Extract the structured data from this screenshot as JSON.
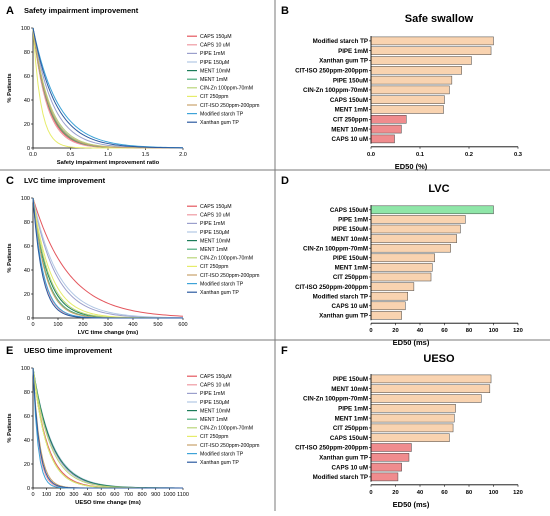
{
  "colors": {
    "bar_default": "#f9d3b0",
    "bar_low": "#f08c8e",
    "bar_high": "#8fe6a8",
    "bar_stroke": "#444444",
    "divider": "#7a7a7a"
  },
  "line_colors": [
    "#e4575e",
    "#ee9aa2",
    "#9b9fcc",
    "#b2c7e4",
    "#1c7c59",
    "#49aa7c",
    "#b9d57a",
    "#e6ec6a",
    "#c9a26c",
    "#3da3d8",
    "#2b5aa0"
  ],
  "chart_data": [
    {
      "panel": "A",
      "type": "line",
      "title": "Safety impairment improvement",
      "xlabel": "Safety impairment improvement ratio",
      "ylabel": "% Patients",
      "xlim": [
        0.0,
        2.0
      ],
      "ylim": [
        0,
        100
      ],
      "xticks": [
        "0.0",
        "0.5",
        "1.0",
        "1.5",
        "2.0"
      ],
      "yticks": [
        "0",
        "20",
        "40",
        "60",
        "80",
        "100"
      ],
      "legend_position": "right",
      "series": [
        {
          "name": "CAPS 150μM",
          "k": 5.2
        },
        {
          "name": "CAPS 10 uM",
          "k": 5.5
        },
        {
          "name": "PIPE 1mM",
          "k": 3.8
        },
        {
          "name": "PIPE 150μM",
          "k": 4.6
        },
        {
          "name": "MENT 10mM",
          "k": 4.9
        },
        {
          "name": "MENT 1mM",
          "k": 5.0
        },
        {
          "name": "CIN-Zn 100ppm-70mM",
          "k": 4.5
        },
        {
          "name": "CIT 250ppm",
          "k": 9.5
        },
        {
          "name": "CIT-ISO 250ppm-200ppm",
          "k": 4.8
        },
        {
          "name": "Modified starch TP",
          "k": 3.0
        },
        {
          "name": "Xanthan gum TP",
          "k": 3.3
        }
      ]
    },
    {
      "panel": "C",
      "type": "line",
      "title": "LVC time improvement",
      "xlabel": "LVC time change (ms)",
      "ylabel": "% Patients",
      "xlim": [
        0,
        600
      ],
      "ylim": [
        0,
        100
      ],
      "xticks": [
        "0",
        "100",
        "200",
        "300",
        "400",
        "500",
        "600"
      ],
      "yticks": [
        "0",
        "20",
        "40",
        "60",
        "80",
        "100"
      ],
      "legend_position": "right",
      "series": [
        {
          "name": "CAPS 150μM",
          "k": 0.007
        },
        {
          "name": "CAPS 10 uM",
          "k": 0.025
        },
        {
          "name": "PIPE 1mM",
          "k": 0.011
        },
        {
          "name": "PIPE 150μM",
          "k": 0.01
        },
        {
          "name": "MENT 10mM",
          "k": 0.017
        },
        {
          "name": "MENT 1mM",
          "k": 0.019
        },
        {
          "name": "CIN-Zn 100ppm-70mM",
          "k": 0.016
        },
        {
          "name": "CIT 250ppm",
          "k": 0.014
        },
        {
          "name": "CIT-ISO 250ppm-200ppm",
          "k": 0.02
        },
        {
          "name": "Modified starch TP",
          "k": 0.024
        },
        {
          "name": "Xanthan gum TP",
          "k": 0.027
        }
      ]
    },
    {
      "panel": "E",
      "type": "line",
      "title": "UESO time improvement",
      "xlabel": "UESO time change (ms)",
      "ylabel": "% Patients",
      "xlim": [
        0,
        1100
      ],
      "ylim": [
        0,
        100
      ],
      "xticks": [
        "0",
        "100",
        "200",
        "300",
        "400",
        "500",
        "600",
        "700",
        "800",
        "900",
        "1000",
        "1100"
      ],
      "yticks": [
        "0",
        "20",
        "40",
        "60",
        "80",
        "100"
      ],
      "legend_position": "right",
      "series": [
        {
          "name": "CAPS 150μM",
          "k": 0.0095
        },
        {
          "name": "CAPS 10 uM",
          "k": 0.024
        },
        {
          "name": "PIPE 1mM",
          "k": 0.0075
        },
        {
          "name": "PIPE 150μM",
          "k": 0.007
        },
        {
          "name": "MENT 10mM",
          "k": 0.0072
        },
        {
          "name": "MENT 1mM",
          "k": 0.01
        },
        {
          "name": "CIN-Zn 100ppm-70mM",
          "k": 0.008
        },
        {
          "name": "CIT 250ppm",
          "k": 0.01
        },
        {
          "name": "CIT-ISO 250ppm-200ppm",
          "k": 0.02
        },
        {
          "name": "Modified starch TP",
          "k": 0.028
        },
        {
          "name": "Xanthan gum TP",
          "k": 0.022
        }
      ]
    },
    {
      "panel": "B",
      "type": "bar",
      "orientation": "horizontal",
      "title": "Safe swallow",
      "xlabel": "ED50 (%)",
      "xlim": [
        0.0,
        0.3
      ],
      "xticks": [
        "0.0",
        "0.1",
        "0.2",
        "0.3"
      ],
      "categories": [
        "Modified starch TP",
        "PIPE 1mM",
        "Xanthan gum TP",
        "CIT-ISO 250ppm-200ppm",
        "PIPE 150uM",
        "CIN-Zn 100ppm-70mM",
        "CAPS 150uM",
        "MENT 1mM",
        "CIT 250ppm",
        "MENT 10mM",
        "CAPS 10 uM"
      ],
      "values": [
        0.25,
        0.245,
        0.205,
        0.185,
        0.165,
        0.16,
        0.15,
        0.148,
        0.072,
        0.062,
        0.048
      ],
      "bar_groups": [
        "default",
        "default",
        "default",
        "default",
        "default",
        "default",
        "default",
        "default",
        "low",
        "low",
        "low"
      ]
    },
    {
      "panel": "D",
      "type": "bar",
      "orientation": "horizontal",
      "title": "LVC",
      "xlabel": "ED50 (ms)",
      "xlim": [
        0,
        120
      ],
      "xticks": [
        "0",
        "20",
        "40",
        "60",
        "80",
        "100",
        "120"
      ],
      "categories": [
        "CAPS 150uM",
        "PIPE 1mM",
        "PIPE 150uM",
        "MENT 10mM",
        "CIN-Zn 100ppm-70mM",
        "PIPE 150uM",
        "MENT 1mM",
        "CIT 250ppm",
        "CIT-ISO 250ppm-200ppm",
        "Modified starch TP",
        "CAPS 10 uM",
        "Xanthan gum TP"
      ],
      "values": [
        100,
        77,
        73,
        70,
        65,
        52,
        50,
        49,
        35,
        30,
        28,
        25
      ],
      "bar_groups": [
        "high",
        "default",
        "default",
        "default",
        "default",
        "default",
        "default",
        "default",
        "default",
        "default",
        "default",
        "default"
      ]
    },
    {
      "panel": "F",
      "type": "bar",
      "orientation": "horizontal",
      "title": "UESO",
      "xlabel": "ED50 (ms)",
      "xlim": [
        0,
        120
      ],
      "xticks": [
        "0",
        "20",
        "40",
        "60",
        "80",
        "100",
        "120"
      ],
      "categories": [
        "PIPE 150uM",
        "MENT 10mM",
        "CIN-Zn 100ppm-70mM",
        "PIPE 1mM",
        "MENT 1mM",
        "CIT 250ppm",
        "CAPS 150uM",
        "CIT-ISO 250ppm-200ppm",
        "Xanthan gum TP",
        "CAPS 10 uM",
        "Modified starch TP"
      ],
      "values": [
        98,
        97,
        90,
        69,
        68,
        67,
        64,
        33,
        31,
        25,
        22
      ],
      "bar_groups": [
        "default",
        "default",
        "default",
        "default",
        "default",
        "default",
        "default",
        "low",
        "low",
        "low",
        "low"
      ]
    }
  ]
}
